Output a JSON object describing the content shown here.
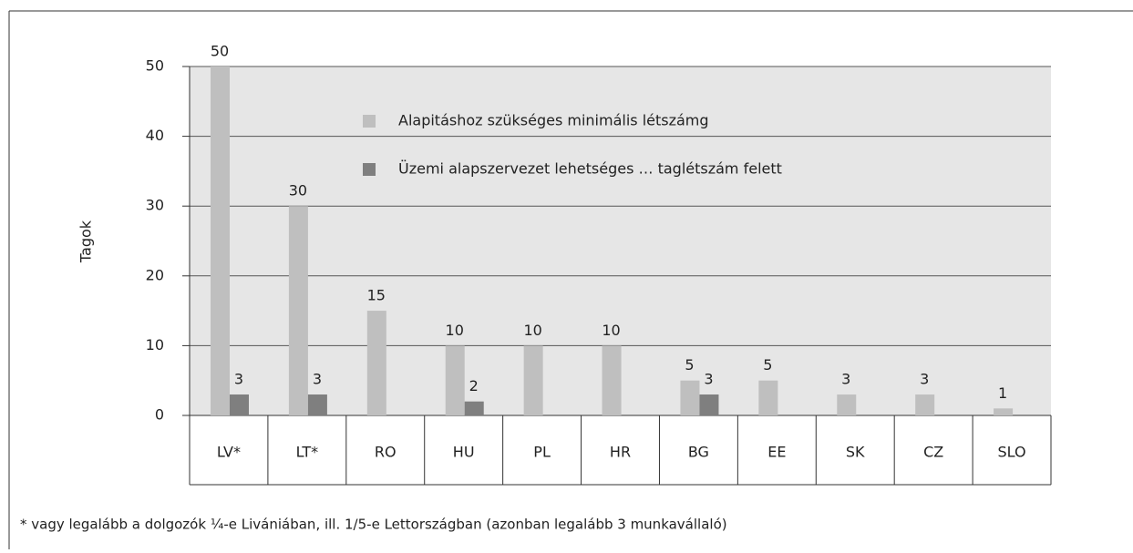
{
  "chart_data": {
    "type": "bar",
    "y_label": "Tagok",
    "categories": [
      "LV*",
      "LT*",
      "RO",
      "HU",
      "PL",
      "HR",
      "BG",
      "EE",
      "SK",
      "CZ",
      "SLO"
    ],
    "series": [
      {
        "name": "Alapitáshoz szükséges minimális létszámg",
        "color": "#bfbfbf",
        "values": [
          50,
          30,
          15,
          10,
          10,
          10,
          5,
          5,
          3,
          3,
          1
        ]
      },
      {
        "name": "Üzemi alapszervezet lehetséges … taglétszám felett",
        "color": "#7f7f7f",
        "values": [
          3,
          3,
          null,
          2,
          null,
          null,
          3,
          null,
          null,
          null,
          null
        ]
      }
    ],
    "ylim": [
      0,
      50
    ],
    "yticks": [
      0,
      10,
      20,
      30,
      40,
      50
    ],
    "grid": true,
    "footnote": "* vagy legalább a dolgozók ¼-e Livániában, ill. 1/5-e Lettországban (azonban legalább 3 munkavállaló)"
  }
}
